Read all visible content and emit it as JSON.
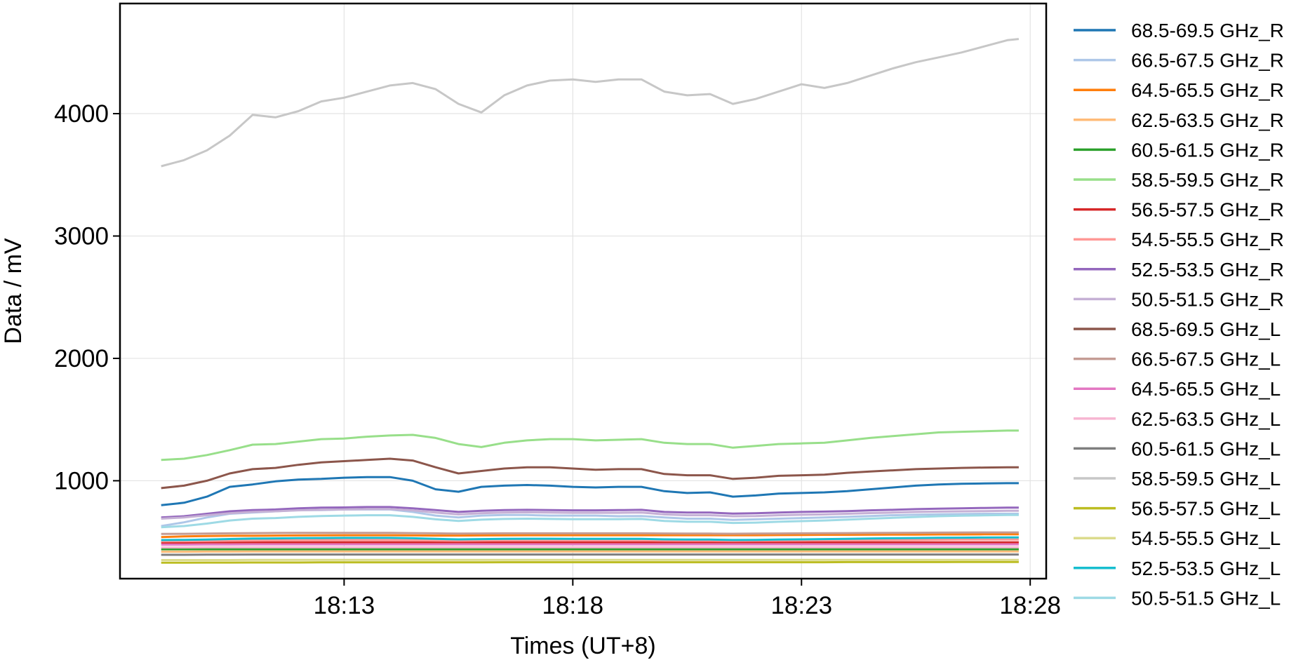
{
  "chart_data": {
    "type": "line",
    "title": "",
    "xlabel": "Times (UT+8)",
    "ylabel": "Data / mV",
    "xlim": [
      8.1,
      28.35
    ],
    "ylim": [
      200,
      4900
    ],
    "x_ticks": [
      13,
      18,
      23,
      28
    ],
    "x_tick_labels": [
      "18:13",
      "18:18",
      "18:23",
      "18:28"
    ],
    "y_ticks": [
      1000,
      2000,
      3000,
      4000
    ],
    "y_tick_labels": [
      "1000",
      "2000",
      "3000",
      "4000"
    ],
    "grid": true,
    "legend_position": "right, outside plot",
    "x_start_label": "18:09",
    "x_end_label": "18:27:45",
    "x": [
      9.0,
      9.5,
      10.0,
      10.5,
      11.0,
      11.5,
      12.0,
      12.5,
      13.0,
      13.5,
      14.0,
      14.5,
      15.0,
      15.5,
      16.0,
      16.5,
      17.0,
      17.5,
      18.0,
      18.5,
      19.0,
      19.5,
      20.0,
      20.5,
      21.0,
      21.5,
      22.0,
      22.5,
      23.0,
      23.5,
      24.0,
      24.5,
      25.0,
      25.5,
      26.0,
      26.5,
      27.0,
      27.5,
      27.75
    ],
    "series": [
      {
        "name": "68.5-69.5 GHz_R",
        "color": "#1f77b4",
        "values": [
          800,
          820,
          870,
          950,
          970,
          995,
          1010,
          1015,
          1025,
          1030,
          1030,
          1000,
          930,
          910,
          950,
          960,
          965,
          960,
          950,
          945,
          950,
          950,
          915,
          900,
          905,
          870,
          880,
          895,
          900,
          905,
          915,
          930,
          945,
          960,
          970,
          975,
          978,
          980,
          980
        ]
      },
      {
        "name": "66.5-67.5 GHz_R",
        "color": "#aec7e8",
        "values": [
          630,
          660,
          700,
          730,
          740,
          750,
          760,
          760,
          765,
          765,
          765,
          745,
          715,
          700,
          715,
          720,
          720,
          715,
          715,
          715,
          710,
          712,
          700,
          690,
          690,
          680,
          685,
          690,
          695,
          700,
          705,
          712,
          718,
          722,
          726,
          728,
          730,
          730,
          730
        ]
      },
      {
        "name": "64.5-65.5 GHz_R",
        "color": "#ff7f0e",
        "values": [
          540,
          545,
          548,
          550,
          550,
          552,
          553,
          554,
          555,
          555,
          555,
          553,
          552,
          552,
          553,
          554,
          555,
          555,
          555,
          555,
          555,
          555,
          555,
          555,
          555,
          555,
          555,
          556,
          557,
          558,
          558,
          559,
          560,
          560,
          561,
          561,
          562,
          562,
          562
        ]
      },
      {
        "name": "62.5-63.5 GHz_R",
        "color": "#ffbb78",
        "values": [
          420,
          420,
          421,
          421,
          422,
          422,
          422,
          422,
          422,
          422,
          422,
          422,
          422,
          422,
          422,
          422,
          422,
          422,
          422,
          422,
          422,
          422,
          422,
          422,
          422,
          422,
          422,
          422,
          422,
          422,
          422,
          422,
          422,
          422,
          422,
          422,
          422,
          422,
          422
        ]
      },
      {
        "name": "60.5-61.5 GHz_R",
        "color": "#2ca02c",
        "values": [
          440,
          440,
          440,
          440,
          440,
          440,
          440,
          440,
          440,
          440,
          440,
          440,
          440,
          440,
          440,
          440,
          440,
          440,
          440,
          440,
          440,
          440,
          440,
          440,
          440,
          440,
          440,
          440,
          440,
          440,
          440,
          440,
          440,
          440,
          440,
          440,
          440,
          440,
          440
        ]
      },
      {
        "name": "58.5-59.5 GHz_R",
        "color": "#98df8a",
        "values": [
          1170,
          1180,
          1210,
          1250,
          1295,
          1300,
          1320,
          1340,
          1345,
          1360,
          1370,
          1375,
          1350,
          1300,
          1275,
          1310,
          1330,
          1340,
          1340,
          1330,
          1335,
          1340,
          1310,
          1300,
          1300,
          1270,
          1285,
          1300,
          1305,
          1310,
          1330,
          1350,
          1365,
          1380,
          1395,
          1400,
          1405,
          1410,
          1410
        ]
      },
      {
        "name": "56.5-57.5 GHz_R",
        "color": "#d62728",
        "values": [
          495,
          495,
          496,
          496,
          497,
          497,
          497,
          497,
          497,
          497,
          497,
          497,
          497,
          497,
          497,
          497,
          497,
          497,
          497,
          497,
          497,
          497,
          497,
          497,
          497,
          497,
          497,
          497,
          497,
          497,
          497,
          497,
          497,
          497,
          497,
          497,
          497,
          497,
          497
        ]
      },
      {
        "name": "54.5-55.5 GHz_R",
        "color": "#ff9896",
        "values": [
          505,
          506,
          508,
          510,
          512,
          513,
          514,
          515,
          515,
          515,
          515,
          514,
          512,
          510,
          512,
          513,
          514,
          514,
          513,
          513,
          513,
          513,
          511,
          510,
          510,
          509,
          510,
          511,
          512,
          513,
          514,
          515,
          516,
          517,
          518,
          519,
          520,
          520,
          520
        ]
      },
      {
        "name": "52.5-53.5 GHz_R",
        "color": "#9467bd",
        "values": [
          700,
          710,
          730,
          750,
          760,
          765,
          775,
          780,
          782,
          785,
          785,
          775,
          760,
          745,
          755,
          760,
          762,
          760,
          758,
          758,
          760,
          762,
          745,
          740,
          740,
          732,
          735,
          740,
          745,
          748,
          752,
          758,
          762,
          768,
          772,
          775,
          778,
          780,
          780
        ]
      },
      {
        "name": "50.5-51.5 GHz_R",
        "color": "#c5b0d5",
        "values": [
          690,
          700,
          718,
          735,
          745,
          750,
          758,
          762,
          765,
          768,
          768,
          758,
          740,
          725,
          735,
          740,
          742,
          740,
          738,
          738,
          738,
          740,
          725,
          718,
          718,
          710,
          712,
          718,
          722,
          725,
          730,
          736,
          740,
          745,
          748,
          750,
          752,
          754,
          754
        ]
      },
      {
        "name": "68.5-69.5 GHz_L",
        "color": "#8c564b",
        "values": [
          940,
          960,
          1000,
          1060,
          1095,
          1105,
          1130,
          1150,
          1160,
          1170,
          1180,
          1165,
          1110,
          1060,
          1080,
          1100,
          1110,
          1110,
          1100,
          1090,
          1095,
          1095,
          1055,
          1045,
          1045,
          1015,
          1025,
          1040,
          1045,
          1050,
          1065,
          1075,
          1085,
          1095,
          1100,
          1105,
          1108,
          1110,
          1110
        ]
      },
      {
        "name": "66.5-67.5 GHz_L",
        "color": "#c49c94",
        "values": [
          565,
          566,
          568,
          570,
          572,
          573,
          574,
          574,
          574,
          574,
          574,
          572,
          570,
          568,
          569,
          570,
          570,
          570,
          570,
          570,
          570,
          570,
          569,
          568,
          568,
          567,
          568,
          569,
          570,
          571,
          572,
          573,
          574,
          575,
          576,
          577,
          578,
          578,
          578
        ]
      },
      {
        "name": "64.5-65.5 GHz_L",
        "color": "#e377c2",
        "values": [
          478,
          478,
          479,
          479,
          480,
          480,
          480,
          480,
          480,
          480,
          480,
          480,
          480,
          480,
          480,
          480,
          480,
          480,
          480,
          480,
          480,
          480,
          480,
          480,
          480,
          480,
          480,
          480,
          480,
          480,
          480,
          480,
          480,
          480,
          480,
          480,
          480,
          480,
          480
        ]
      },
      {
        "name": "62.5-63.5 GHz_L",
        "color": "#f7b6d2",
        "values": [
          455,
          455,
          456,
          456,
          456,
          456,
          456,
          456,
          456,
          456,
          456,
          456,
          456,
          456,
          456,
          456,
          456,
          456,
          456,
          456,
          456,
          456,
          456,
          456,
          456,
          456,
          456,
          456,
          456,
          456,
          456,
          456,
          456,
          456,
          456,
          456,
          456,
          456,
          456
        ]
      },
      {
        "name": "60.5-61.5 GHz_L",
        "color": "#7f7f7f",
        "values": [
          395,
          395,
          396,
          396,
          397,
          397,
          397,
          397,
          397,
          397,
          397,
          397,
          397,
          397,
          397,
          397,
          397,
          397,
          397,
          397,
          397,
          397,
          397,
          397,
          397,
          397,
          397,
          397,
          397,
          397,
          397,
          397,
          397,
          397,
          397,
          397,
          397,
          397,
          397
        ]
      },
      {
        "name": "58.5-59.5 GHz_L",
        "color": "#c7c7c7",
        "values": [
          3570,
          3620,
          3700,
          3820,
          3990,
          3970,
          4020,
          4100,
          4130,
          4180,
          4230,
          4250,
          4200,
          4080,
          4010,
          4150,
          4230,
          4270,
          4280,
          4260,
          4280,
          4280,
          4180,
          4150,
          4160,
          4080,
          4120,
          4180,
          4240,
          4210,
          4250,
          4310,
          4370,
          4420,
          4460,
          4500,
          4550,
          4600,
          4610
        ]
      },
      {
        "name": "56.5-57.5 GHz_L",
        "color": "#bcbd22",
        "values": [
          330,
          330,
          331,
          331,
          332,
          332,
          332,
          333,
          333,
          333,
          333,
          333,
          333,
          333,
          333,
          334,
          334,
          334,
          334,
          334,
          334,
          334,
          334,
          334,
          334,
          334,
          334,
          334,
          334,
          334,
          335,
          335,
          335,
          335,
          335,
          336,
          336,
          336,
          336
        ]
      },
      {
        "name": "54.5-55.5 GHz_L",
        "color": "#dbdb8d",
        "values": [
          352,
          352,
          352,
          352,
          353,
          353,
          353,
          353,
          353,
          353,
          353,
          353,
          353,
          353,
          353,
          353,
          353,
          353,
          353,
          353,
          353,
          353,
          353,
          353,
          353,
          353,
          353,
          353,
          353,
          353,
          353,
          353,
          353,
          353,
          353,
          353,
          353,
          353,
          353
        ]
      },
      {
        "name": "52.5-53.5 GHz_L",
        "color": "#17becf",
        "values": [
          515,
          517,
          520,
          524,
          527,
          529,
          531,
          532,
          533,
          533,
          533,
          530,
          525,
          521,
          523,
          525,
          526,
          526,
          525,
          525,
          525,
          525,
          521,
          519,
          519,
          516,
          517,
          519,
          521,
          523,
          525,
          528,
          530,
          532,
          534,
          535,
          536,
          537,
          537
        ]
      },
      {
        "name": "50.5-51.5 GHz_L",
        "color": "#9edae5",
        "values": [
          620,
          630,
          650,
          675,
          690,
          695,
          705,
          712,
          715,
          718,
          718,
          705,
          685,
          672,
          682,
          688,
          690,
          688,
          686,
          686,
          686,
          688,
          672,
          665,
          665,
          655,
          658,
          665,
          670,
          675,
          682,
          690,
          697,
          704,
          710,
          714,
          717,
          720,
          720
        ]
      }
    ]
  }
}
